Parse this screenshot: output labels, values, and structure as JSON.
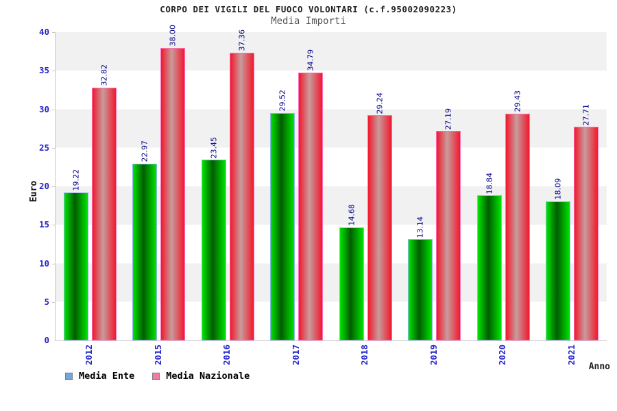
{
  "header": {
    "title": "CORPO DEI VIGILI DEL FUOCO VOLONTARI (c.f.95002090223)",
    "subtitle": "Media Importi"
  },
  "axes": {
    "y_label": "Euro",
    "x_label": "Anno",
    "y_ticks": [
      0,
      5,
      10,
      15,
      20,
      25,
      30,
      35,
      40
    ]
  },
  "legend": {
    "items": [
      {
        "label": "Media Ente",
        "swatch": "#6fa8dc"
      },
      {
        "label": "Media Nazionale",
        "swatch": "#f478a8"
      }
    ]
  },
  "chart_data": {
    "type": "bar",
    "title": "CORPO DEI VIGILI DEL FUOCO VOLONTARI (c.f.95002090223)",
    "subtitle": "Media Importi",
    "xlabel": "Anno",
    "ylabel": "Euro",
    "ylim": [
      0,
      40
    ],
    "grid": "horizontal-bands-every-5",
    "legend_position": "bottom-left",
    "categories": [
      "2012",
      "2015",
      "2016",
      "2017",
      "2018",
      "2019",
      "2020",
      "2021"
    ],
    "series": [
      {
        "name": "Media Ente",
        "values": [
          19.22,
          22.97,
          23.45,
          29.52,
          14.68,
          13.14,
          18.84,
          18.09
        ],
        "fill_gradient": [
          "#00e400",
          "#015c01",
          "#00e400"
        ],
        "border_color": "#8ab8ea"
      },
      {
        "name": "Media Nazionale",
        "values": [
          32.82,
          38.0,
          37.36,
          34.79,
          29.24,
          27.19,
          29.43,
          27.71
        ],
        "fill_gradient": [
          "#f2182c",
          "#c79c9c",
          "#f2182c"
        ],
        "border_color": "#ff70b8"
      }
    ],
    "value_label_color": "#00008b",
    "tick_label_color": "#2424cd"
  }
}
